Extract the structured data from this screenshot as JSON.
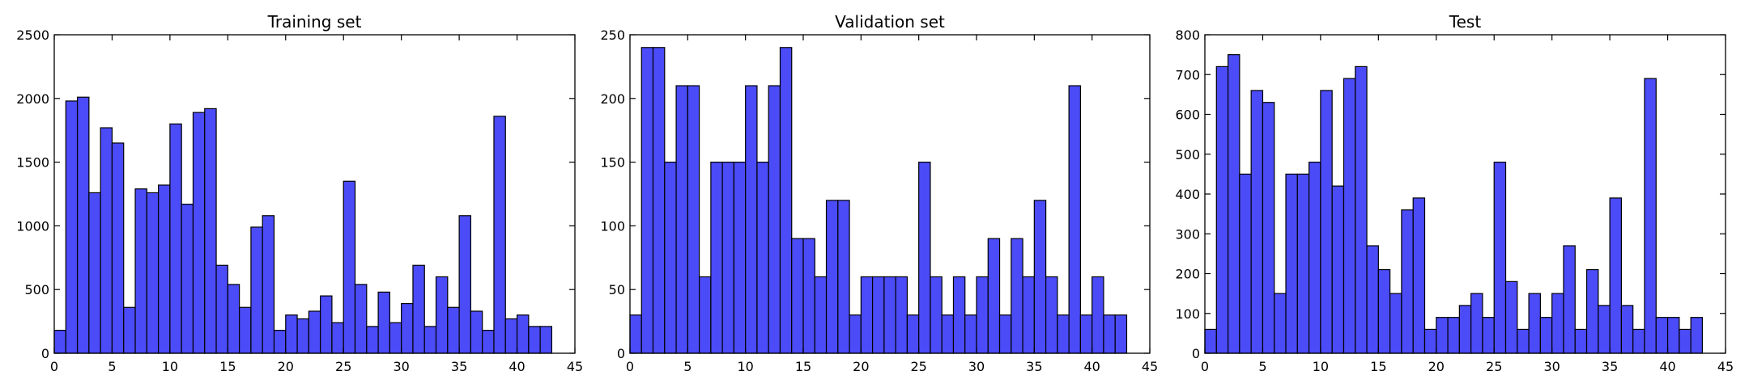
{
  "chart_data": [
    {
      "type": "bar",
      "title": "Training set",
      "xlabel": "",
      "ylabel": "",
      "xlim": [
        0,
        45
      ],
      "ylim": [
        0,
        2500
      ],
      "x_ticks": [
        0,
        5,
        10,
        15,
        20,
        25,
        30,
        35,
        40,
        45
      ],
      "y_ticks": [
        0,
        500,
        1000,
        1500,
        2000,
        2500
      ],
      "grid": false,
      "bar_color": "#4b4bf7",
      "bins": [
        0,
        1,
        2,
        3,
        4,
        5,
        6,
        7,
        8,
        9,
        10,
        11,
        12,
        13,
        14,
        15,
        16,
        17,
        18,
        19,
        20,
        21,
        22,
        23,
        24,
        25,
        26,
        27,
        28,
        29,
        30,
        31,
        32,
        33,
        34,
        35,
        36,
        37,
        38,
        39,
        40,
        41,
        42
      ],
      "values": [
        180,
        1980,
        2010,
        1260,
        1770,
        1650,
        360,
        1290,
        1260,
        1320,
        1800,
        1170,
        1890,
        1920,
        690,
        540,
        360,
        990,
        1080,
        180,
        300,
        270,
        330,
        450,
        240,
        1350,
        540,
        210,
        480,
        240,
        390,
        690,
        210,
        600,
        360,
        1080,
        330,
        180,
        1860,
        270,
        300,
        210,
        210
      ]
    },
    {
      "type": "bar",
      "title": "Validation set",
      "xlabel": "",
      "ylabel": "",
      "xlim": [
        0,
        45
      ],
      "ylim": [
        0,
        250
      ],
      "x_ticks": [
        0,
        5,
        10,
        15,
        20,
        25,
        30,
        35,
        40,
        45
      ],
      "y_ticks": [
        0,
        50,
        100,
        150,
        200,
        250
      ],
      "grid": false,
      "bar_color": "#4b4bf7",
      "bins": [
        0,
        1,
        2,
        3,
        4,
        5,
        6,
        7,
        8,
        9,
        10,
        11,
        12,
        13,
        14,
        15,
        16,
        17,
        18,
        19,
        20,
        21,
        22,
        23,
        24,
        25,
        26,
        27,
        28,
        29,
        30,
        31,
        32,
        33,
        34,
        35,
        36,
        37,
        38,
        39,
        40,
        41,
        42
      ],
      "values": [
        30,
        240,
        240,
        150,
        210,
        210,
        60,
        150,
        150,
        150,
        210,
        150,
        210,
        240,
        90,
        90,
        60,
        120,
        120,
        30,
        60,
        60,
        60,
        60,
        30,
        150,
        60,
        30,
        60,
        30,
        60,
        90,
        30,
        90,
        60,
        120,
        60,
        30,
        210,
        30,
        60,
        30,
        30
      ]
    },
    {
      "type": "bar",
      "title": "Test",
      "xlabel": "",
      "ylabel": "",
      "xlim": [
        0,
        45
      ],
      "ylim": [
        0,
        800
      ],
      "x_ticks": [
        0,
        5,
        10,
        15,
        20,
        25,
        30,
        35,
        40,
        45
      ],
      "y_ticks": [
        0,
        100,
        200,
        300,
        400,
        500,
        600,
        700,
        800
      ],
      "grid": false,
      "bar_color": "#4b4bf7",
      "bins": [
        0,
        1,
        2,
        3,
        4,
        5,
        6,
        7,
        8,
        9,
        10,
        11,
        12,
        13,
        14,
        15,
        16,
        17,
        18,
        19,
        20,
        21,
        22,
        23,
        24,
        25,
        26,
        27,
        28,
        29,
        30,
        31,
        32,
        33,
        34,
        35,
        36,
        37,
        38,
        39,
        40,
        41,
        42
      ],
      "values": [
        60,
        720,
        750,
        450,
        660,
        630,
        150,
        450,
        450,
        480,
        660,
        420,
        690,
        720,
        270,
        210,
        150,
        360,
        390,
        60,
        90,
        90,
        120,
        150,
        90,
        480,
        180,
        60,
        150,
        90,
        150,
        270,
        60,
        210,
        120,
        390,
        120,
        60,
        690,
        90,
        90,
        60,
        90
      ]
    }
  ]
}
